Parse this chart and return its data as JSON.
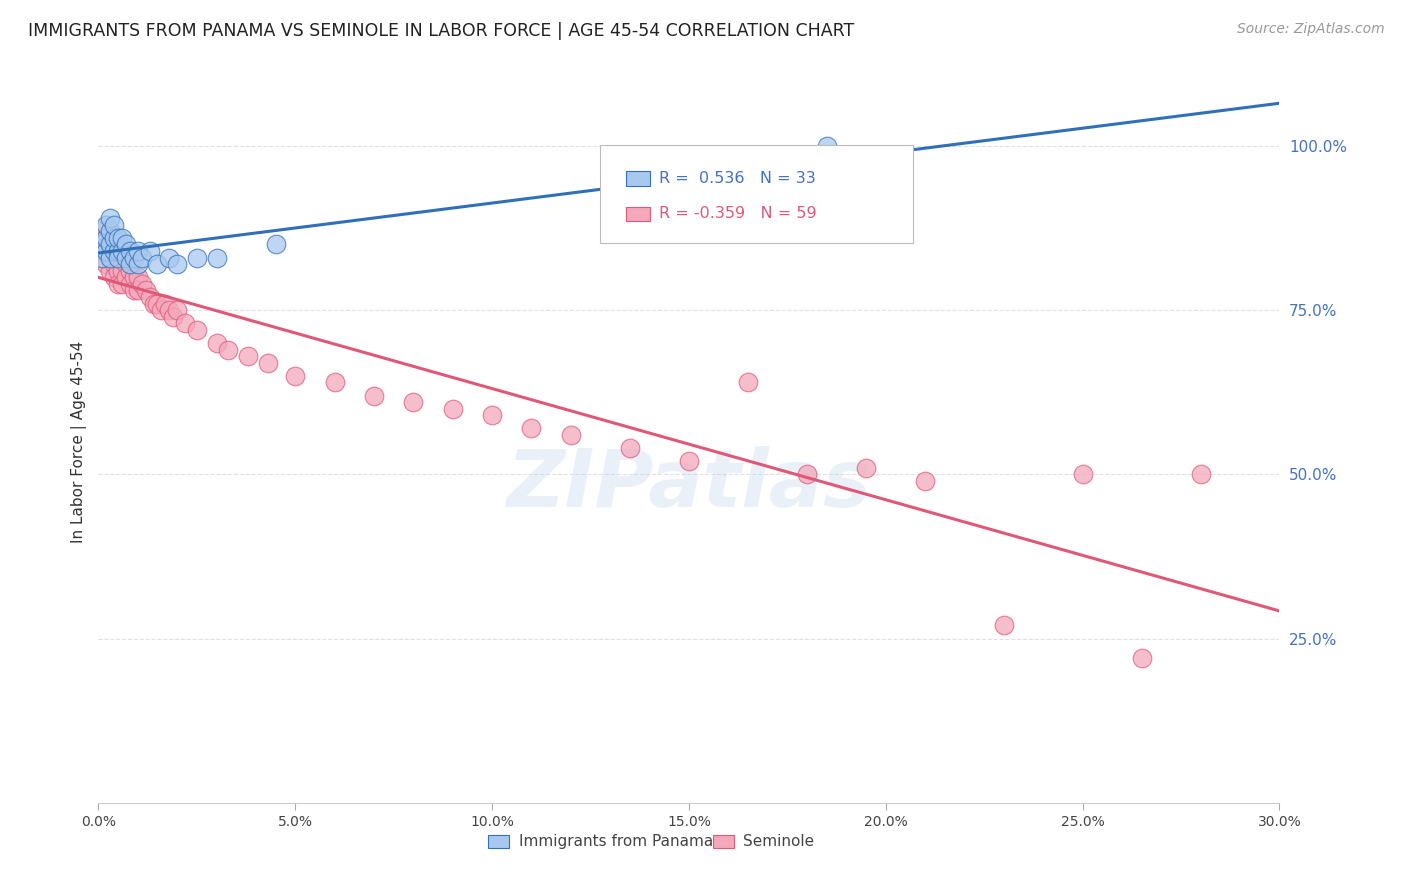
{
  "title": "IMMIGRANTS FROM PANAMA VS SEMINOLE IN LABOR FORCE | AGE 45-54 CORRELATION CHART",
  "source": "Source: ZipAtlas.com",
  "ylabel_label": "In Labor Force | Age 45-54",
  "xmin": 0.0,
  "xmax": 0.3,
  "ymin": 0.0,
  "ymax": 1.1,
  "xtick_labels": [
    "0.0%",
    "5.0%",
    "10.0%",
    "15.0%",
    "20.0%",
    "25.0%",
    "30.0%"
  ],
  "xtick_values": [
    0.0,
    0.05,
    0.1,
    0.15,
    0.2,
    0.25,
    0.3
  ],
  "ytick_labels": [
    "25.0%",
    "50.0%",
    "75.0%",
    "100.0%"
  ],
  "ytick_values": [
    0.25,
    0.5,
    0.75,
    1.0
  ],
  "panama_R": 0.536,
  "panama_N": 33,
  "seminole_R": -0.359,
  "seminole_N": 59,
  "panama_color": "#A8C8F0",
  "seminole_color": "#F4A8BC",
  "panama_line_color": "#3070B8",
  "seminole_line_color": "#E05878",
  "panama_x": [
    0.001,
    0.001,
    0.002,
    0.002,
    0.002,
    0.003,
    0.003,
    0.003,
    0.003,
    0.004,
    0.004,
    0.004,
    0.005,
    0.005,
    0.005,
    0.006,
    0.006,
    0.007,
    0.007,
    0.008,
    0.008,
    0.009,
    0.01,
    0.01,
    0.011,
    0.013,
    0.015,
    0.018,
    0.02,
    0.025,
    0.03,
    0.045,
    0.185
  ],
  "panama_y": [
    0.83,
    0.85,
    0.84,
    0.86,
    0.88,
    0.83,
    0.85,
    0.87,
    0.89,
    0.84,
    0.86,
    0.88,
    0.84,
    0.86,
    0.83,
    0.84,
    0.86,
    0.83,
    0.85,
    0.84,
    0.82,
    0.83,
    0.82,
    0.84,
    0.83,
    0.84,
    0.82,
    0.83,
    0.82,
    0.83,
    0.83,
    0.85,
    1.0
  ],
  "seminole_x": [
    0.001,
    0.001,
    0.002,
    0.002,
    0.002,
    0.003,
    0.003,
    0.003,
    0.004,
    0.004,
    0.004,
    0.005,
    0.005,
    0.005,
    0.006,
    0.006,
    0.006,
    0.007,
    0.007,
    0.008,
    0.008,
    0.009,
    0.009,
    0.01,
    0.01,
    0.011,
    0.012,
    0.013,
    0.014,
    0.015,
    0.016,
    0.017,
    0.018,
    0.019,
    0.02,
    0.022,
    0.025,
    0.03,
    0.033,
    0.038,
    0.043,
    0.05,
    0.06,
    0.07,
    0.08,
    0.09,
    0.1,
    0.11,
    0.12,
    0.135,
    0.15,
    0.165,
    0.18,
    0.195,
    0.21,
    0.23,
    0.25,
    0.265,
    0.28
  ],
  "seminole_y": [
    0.87,
    0.84,
    0.86,
    0.84,
    0.82,
    0.85,
    0.83,
    0.81,
    0.84,
    0.82,
    0.8,
    0.83,
    0.81,
    0.79,
    0.83,
    0.81,
    0.79,
    0.82,
    0.8,
    0.81,
    0.79,
    0.8,
    0.78,
    0.8,
    0.78,
    0.79,
    0.78,
    0.77,
    0.76,
    0.76,
    0.75,
    0.76,
    0.75,
    0.74,
    0.75,
    0.73,
    0.72,
    0.7,
    0.69,
    0.68,
    0.67,
    0.65,
    0.64,
    0.62,
    0.61,
    0.6,
    0.59,
    0.57,
    0.56,
    0.54,
    0.52,
    0.64,
    0.5,
    0.51,
    0.49,
    0.27,
    0.5,
    0.22,
    0.5
  ],
  "background_color": "#FFFFFF",
  "watermark_text": "ZIPatlas",
  "grid_color": "#DDDDDD"
}
